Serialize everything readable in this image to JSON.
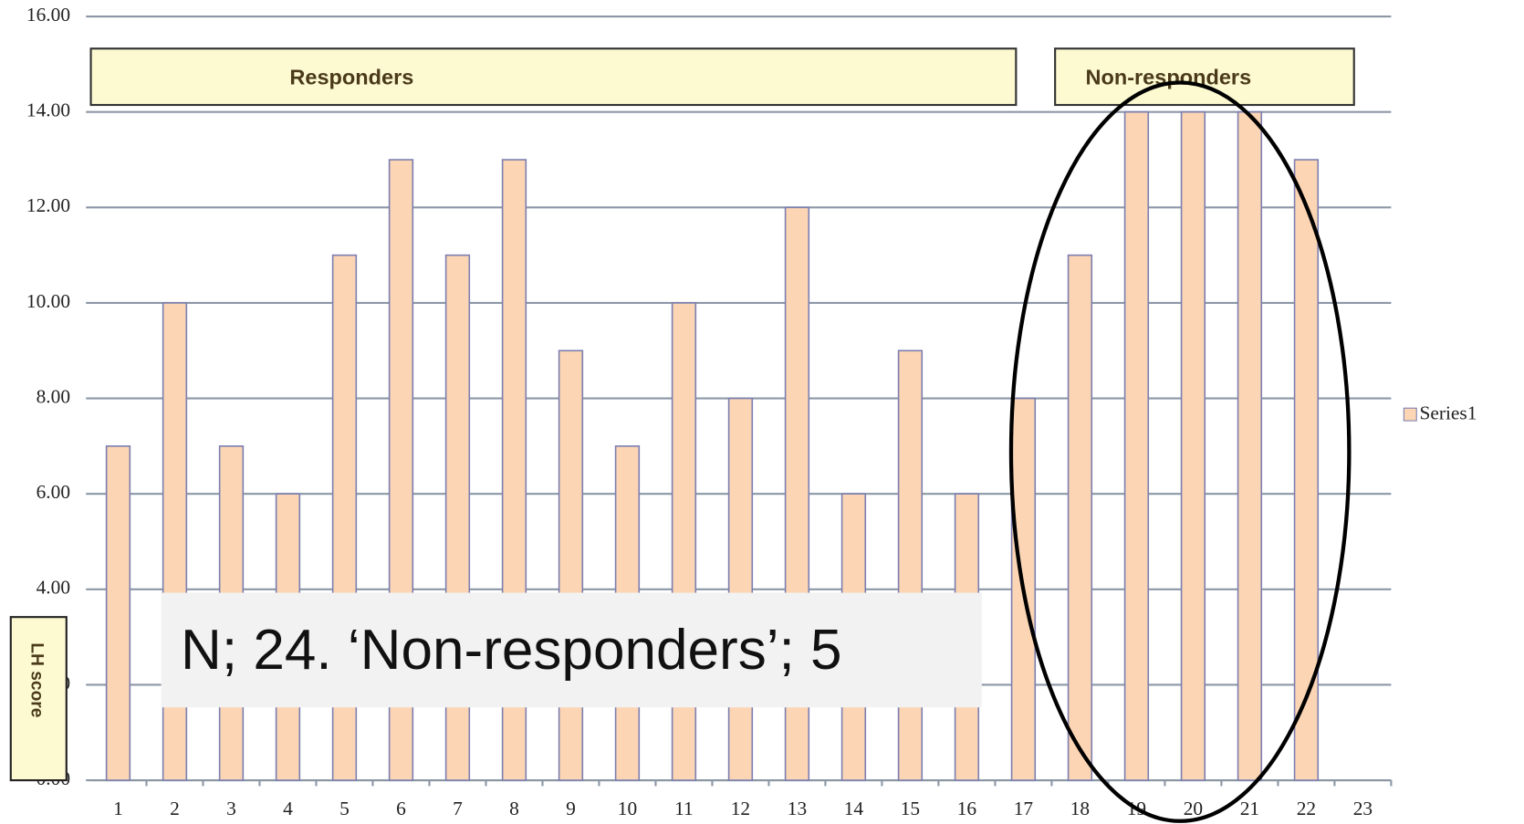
{
  "chart_data": {
    "type": "bar",
    "y_label": "LH score",
    "annotations": {
      "responders": "Responders",
      "non_responders": "Non-responders",
      "note": "N; 24. ‘Non-responders’; 5"
    },
    "categories": [
      "1",
      "2",
      "3",
      "4",
      "5",
      "6",
      "7",
      "8",
      "9",
      "10",
      "11",
      "12",
      "13",
      "14",
      "15",
      "16",
      "17",
      "18",
      "19",
      "20",
      "21",
      "22",
      "23"
    ],
    "series": [
      {
        "name": "Series1",
        "color": "#fcd5b4",
        "values": [
          7,
          10,
          7,
          6,
          11,
          13,
          11,
          13,
          9,
          7,
          10,
          8,
          12,
          6,
          9,
          6,
          8,
          11,
          14,
          14,
          14,
          13,
          null
        ]
      }
    ],
    "ylim": [
      0,
      16
    ],
    "yticks": [
      {
        "value": 0,
        "label": "0.00"
      },
      {
        "value": 2,
        "label": "2.00"
      },
      {
        "value": 4,
        "label": "4.00"
      },
      {
        "value": 6,
        "label": "6.00"
      },
      {
        "value": 8,
        "label": "8.00"
      },
      {
        "value": 10,
        "label": "10.00"
      },
      {
        "value": 12,
        "label": "12.00"
      },
      {
        "value": 14,
        "label": "14.00"
      },
      {
        "value": 16,
        "label": "16.00"
      }
    ],
    "grid": true,
    "legend": "right"
  }
}
